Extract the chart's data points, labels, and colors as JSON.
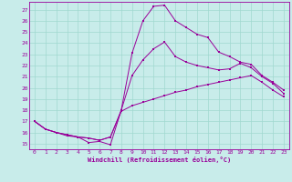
{
  "xlabel": "Windchill (Refroidissement éolien,°C)",
  "bg_color": "#c8ecea",
  "grid_color": "#a0d8d0",
  "line_color": "#990099",
  "x_ticks": [
    0,
    1,
    2,
    3,
    4,
    5,
    6,
    7,
    8,
    9,
    10,
    11,
    12,
    13,
    14,
    15,
    16,
    17,
    18,
    19,
    20,
    21,
    22,
    23
  ],
  "y_ticks": [
    15,
    16,
    17,
    18,
    19,
    20,
    21,
    22,
    23,
    24,
    25,
    26,
    27
  ],
  "xlim": [
    -0.5,
    23.5
  ],
  "ylim": [
    14.5,
    27.7
  ],
  "curve1_x": [
    0,
    1,
    2,
    3,
    4,
    5,
    6,
    7,
    8,
    9,
    10,
    11,
    12,
    13,
    14,
    15,
    16,
    17,
    18,
    19,
    20,
    21,
    22,
    23
  ],
  "curve1_y": [
    17.0,
    16.3,
    16.0,
    15.7,
    15.6,
    15.1,
    15.2,
    14.9,
    18.0,
    23.1,
    26.0,
    27.3,
    27.4,
    26.0,
    25.4,
    24.8,
    24.5,
    23.2,
    22.8,
    22.3,
    22.1,
    21.1,
    20.5,
    19.8
  ],
  "curve2_x": [
    0,
    1,
    2,
    3,
    4,
    5,
    6,
    7,
    8,
    9,
    10,
    11,
    12,
    13,
    14,
    15,
    16,
    17,
    18,
    19,
    20,
    21,
    22,
    23
  ],
  "curve2_y": [
    17.0,
    16.3,
    16.0,
    15.8,
    15.6,
    15.5,
    15.3,
    15.6,
    18.0,
    21.1,
    22.5,
    23.5,
    24.1,
    22.8,
    22.3,
    22.0,
    21.8,
    21.6,
    21.7,
    22.2,
    21.8,
    21.0,
    20.4,
    19.5
  ],
  "curve3_x": [
    0,
    1,
    2,
    3,
    4,
    5,
    6,
    7,
    8,
    9,
    10,
    11,
    12,
    13,
    14,
    15,
    16,
    17,
    18,
    19,
    20,
    21,
    22,
    23
  ],
  "curve3_y": [
    17.0,
    16.3,
    16.0,
    15.8,
    15.6,
    15.5,
    15.3,
    15.6,
    17.9,
    18.4,
    18.7,
    19.0,
    19.3,
    19.6,
    19.8,
    20.1,
    20.3,
    20.5,
    20.7,
    20.9,
    21.1,
    20.5,
    19.8,
    19.2
  ]
}
